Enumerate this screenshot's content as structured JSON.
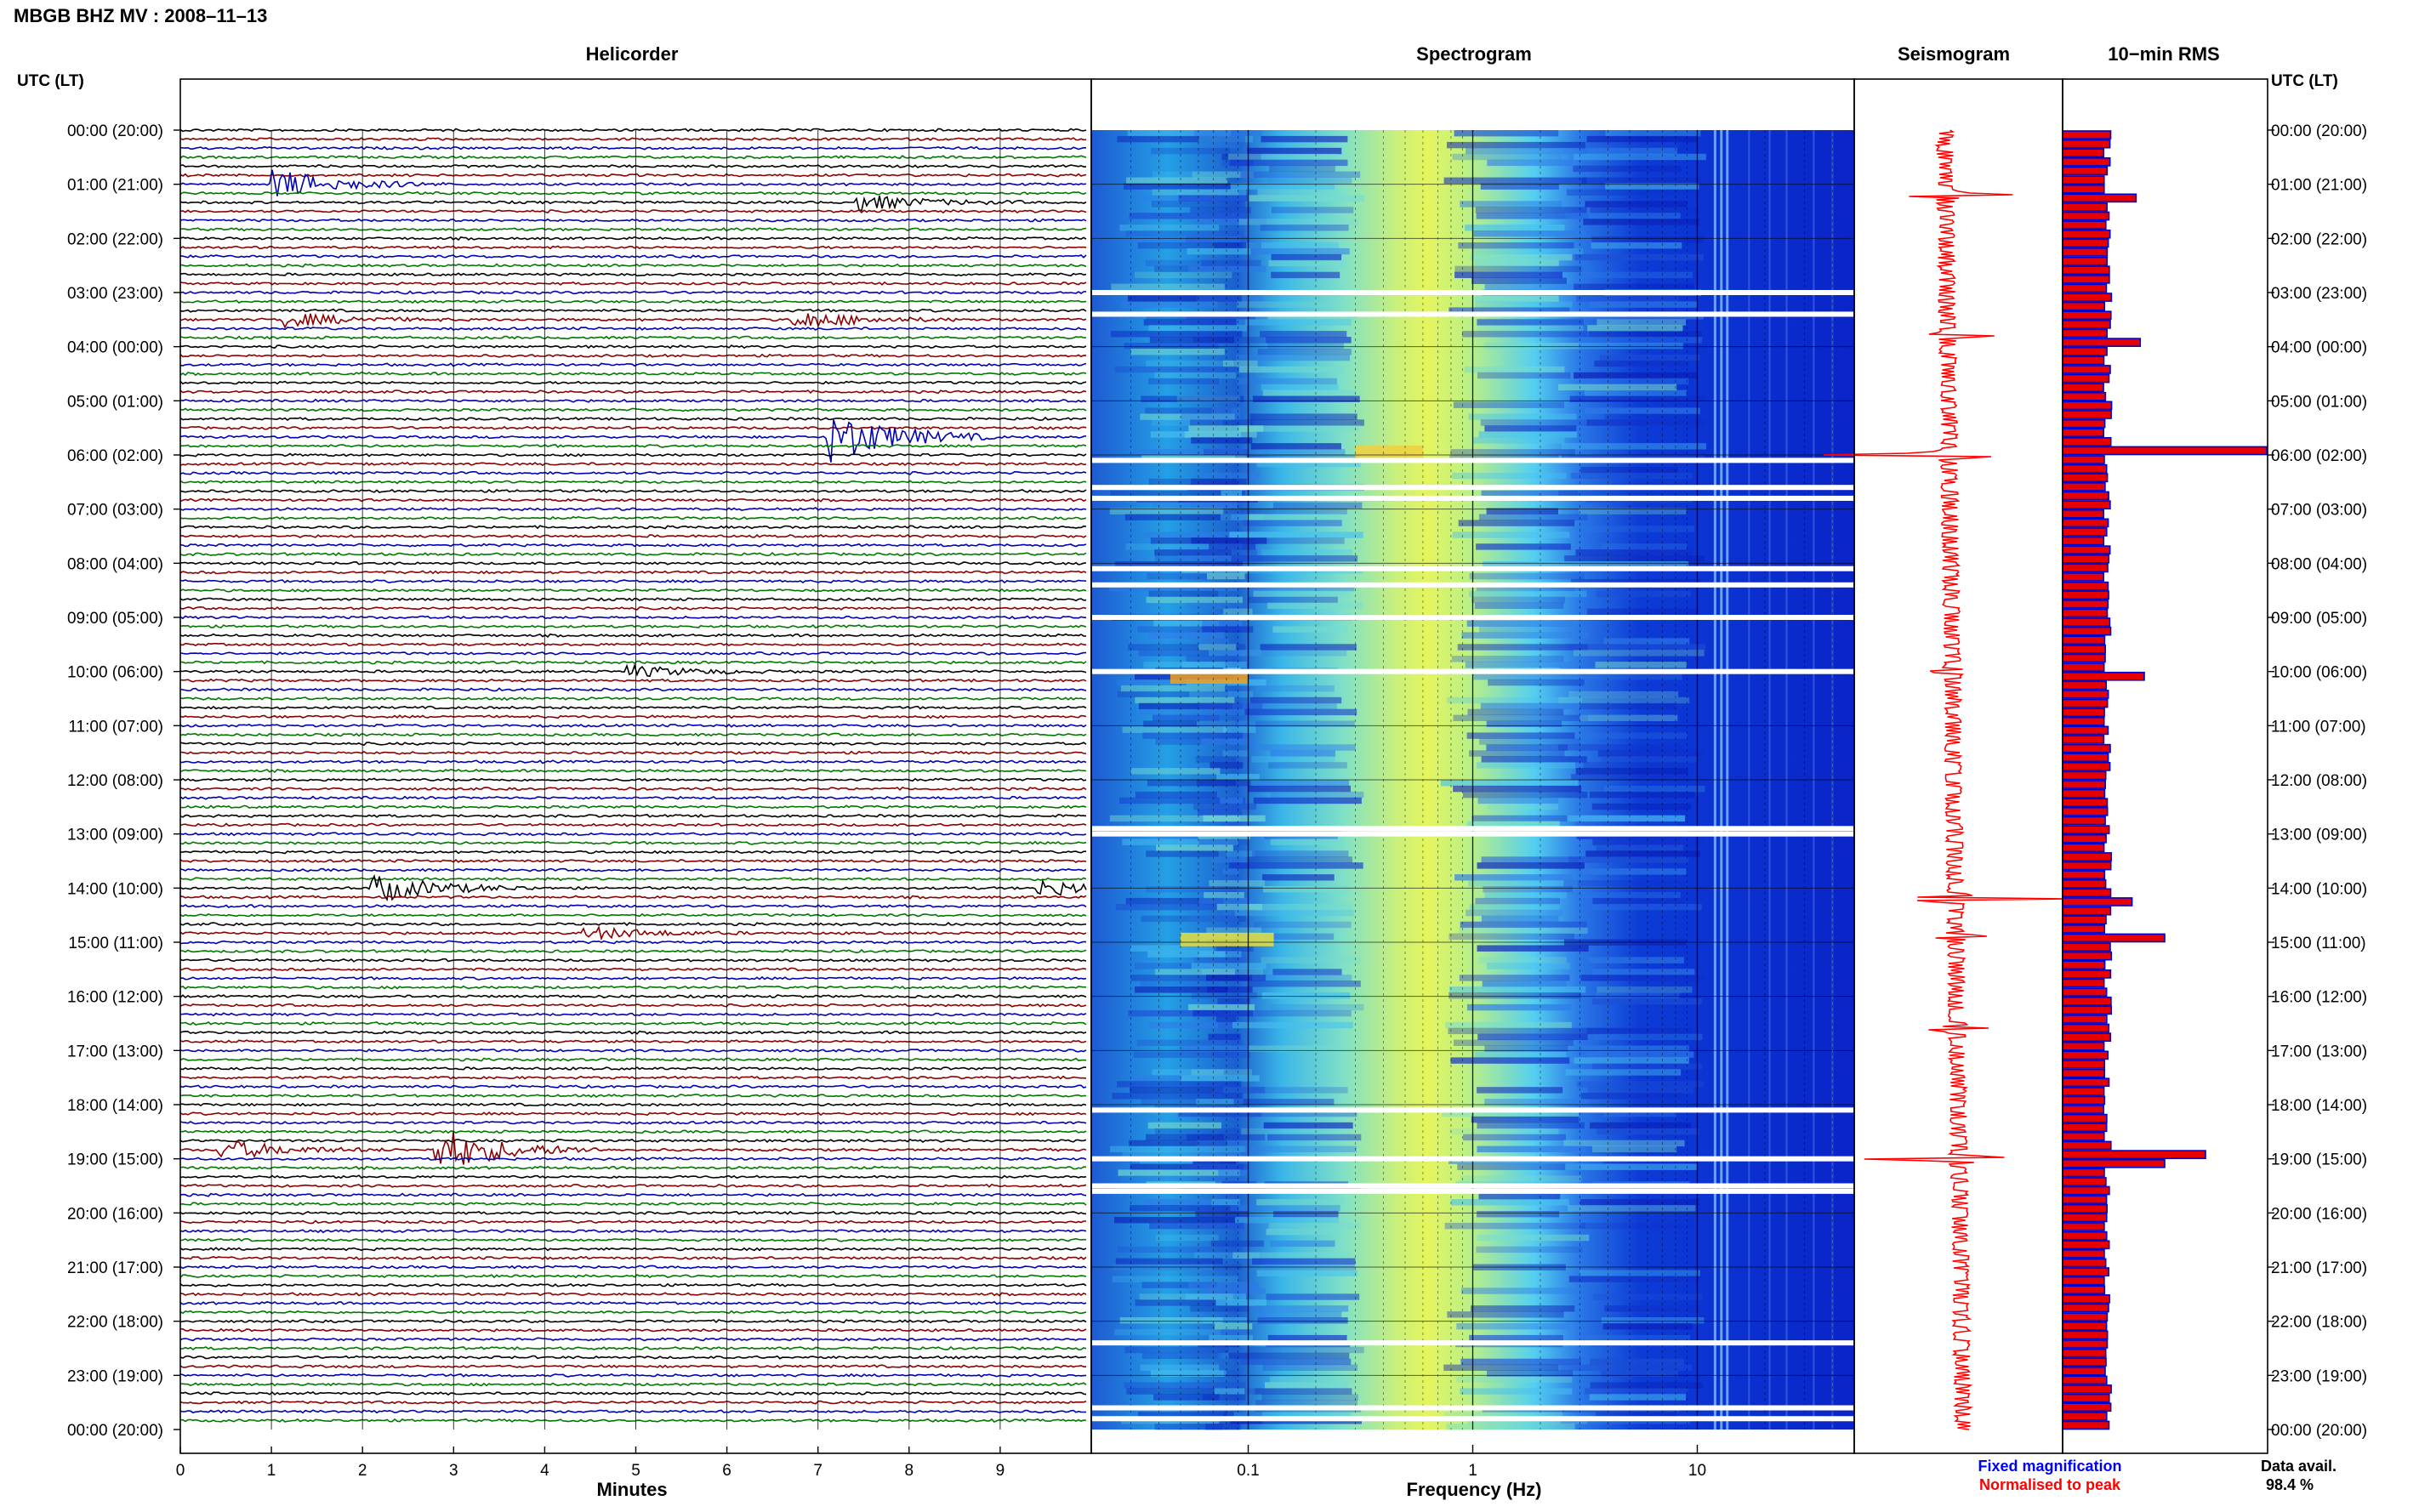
{
  "window_title": "MBGB BHZ MV : 2008–11–13",
  "panels": {
    "helicorder": "Helicorder",
    "spectrogram": "Spectrogram",
    "seismogram": "Seismogram",
    "rms": "10−min RMS"
  },
  "axis": {
    "left_label": "UTC (LT)",
    "right_label": "UTC (LT)",
    "minutes_label": "Minutes",
    "frequency_label": "Frequency (Hz)"
  },
  "legend": {
    "fixed": "Fixed magnification",
    "normalised": "Normalised to peak"
  },
  "data_avail": {
    "label": "Data avail.",
    "value": "98.4 %"
  },
  "colors": {
    "trace": [
      "#000000",
      "#8b0000",
      "#0000b4",
      "#007800"
    ],
    "seismogram": "#ff0000",
    "rms_fill": "#e60000",
    "rms_edge": "#0000cc",
    "legend_fixed": "#0000ff",
    "legend_normalised": "#ff0000"
  },
  "chart_data": [
    {
      "type": "line",
      "name": "helicorder",
      "title": "Helicorder",
      "xlabel": "Minutes",
      "ylabel": "UTC (LT)",
      "x_ticks": [
        "0",
        "1",
        "2",
        "3",
        "4",
        "5",
        "6",
        "7",
        "8",
        "9"
      ],
      "xlim": [
        0,
        10
      ],
      "y_ticks": [
        "00:00 (20:00)",
        "01:00 (21:00)",
        "02:00 (22:00)",
        "03:00 (23:00)",
        "04:00 (00:00)",
        "05:00 (01:00)",
        "06:00 (02:00)",
        "07:00 (03:00)",
        "08:00 (04:00)",
        "09:00 (05:00)",
        "10:00 (06:00)",
        "11:00 (07:00)",
        "12:00 (08:00)",
        "13:00 (09:00)",
        "14:00 (10:00)",
        "15:00 (11:00)",
        "16:00 (12:00)",
        "17:00 (13:00)",
        "18:00 (14:00)",
        "19:00 (15:00)",
        "20:00 (16:00)",
        "21:00 (17:00)",
        "22:00 (18:00)",
        "23:00 (19:00)",
        "00:00 (20:00)"
      ],
      "lines_per_hour": 6,
      "events": [
        {
          "hour": 1.0,
          "minute": 1.1,
          "amp": 1.6
        },
        {
          "hour": 1.4,
          "minute": 7.5,
          "amp": 0.9
        },
        {
          "hour": 3.5,
          "minute": 1.2,
          "amp": 0.8
        },
        {
          "hour": 3.5,
          "minute": 6.8,
          "amp": 1.0
        },
        {
          "hour": 5.6,
          "minute": 7.2,
          "amp": 3.0
        },
        {
          "hour": 10.0,
          "minute": 5.0,
          "amp": 0.6
        },
        {
          "hour": 14.0,
          "minute": 2.2,
          "amp": 1.5
        },
        {
          "hour": 14.0,
          "minute": 9.5,
          "amp": 0.9
        },
        {
          "hour": 14.8,
          "minute": 4.5,
          "amp": 0.7
        },
        {
          "hour": 18.8,
          "minute": 2.9,
          "amp": 2.5
        },
        {
          "hour": 18.9,
          "minute": 0.5,
          "amp": 1.1
        }
      ]
    },
    {
      "type": "heatmap",
      "name": "spectrogram",
      "title": "Spectrogram",
      "xlabel": "Frequency (Hz)",
      "x_scale": "log",
      "xlim": [
        0.02,
        50
      ],
      "x_ticks": [
        "0.1",
        "1",
        "10"
      ],
      "dominant_frequency_hz": 0.4,
      "gap_hours": [
        3.0,
        3.4,
        6.1,
        6.6,
        6.8,
        8.1,
        8.4,
        9.0,
        10.0,
        12.9,
        13.0,
        18.1,
        19.0,
        19.5,
        19.6,
        22.4,
        23.6,
        23.8
      ]
    },
    {
      "type": "line",
      "name": "seismogram",
      "title": "Seismogram",
      "spikes": [
        {
          "hour": 1.2,
          "amp": 0.9
        },
        {
          "hour": 3.8,
          "amp": 0.5
        },
        {
          "hour": 6.0,
          "amp": 1.4
        },
        {
          "hour": 10.0,
          "amp": 0.3
        },
        {
          "hour": 14.2,
          "amp": 1.3
        },
        {
          "hour": 14.9,
          "amp": 0.4
        },
        {
          "hour": 16.6,
          "amp": 0.5
        },
        {
          "hour": 19.0,
          "amp": 1.3
        }
      ]
    },
    {
      "type": "bar",
      "name": "rms",
      "title": "10−min RMS",
      "bars_per_hour": 6,
      "baseline": 0.22,
      "peaks": [
        {
          "hour": 1.2,
          "value": 0.36
        },
        {
          "hour": 3.8,
          "value": 0.38
        },
        {
          "hour": 5.9,
          "value": 1.0
        },
        {
          "hour": 10.0,
          "value": 0.4
        },
        {
          "hour": 14.2,
          "value": 0.34
        },
        {
          "hour": 14.9,
          "value": 0.5
        },
        {
          "hour": 18.9,
          "value": 0.7
        },
        {
          "hour": 19.0,
          "value": 0.5
        }
      ],
      "xlim": [
        0,
        1
      ]
    }
  ]
}
